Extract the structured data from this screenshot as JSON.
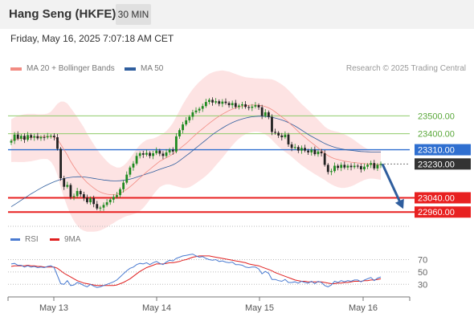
{
  "header": {
    "title": "Hang Seng (HKFE)",
    "timeframe": "30 MIN",
    "timestamp": "Friday, May 16, 2025 7:07:18 AM CET"
  },
  "legend": {
    "ma20": {
      "label": "MA 20 + Bollinger Bands",
      "color": "#f28b82"
    },
    "ma50": {
      "label": "MA 50",
      "color": "#2f5e9e"
    },
    "rsi": {
      "label": "RSI",
      "color": "#4a7bd1"
    },
    "rsi_ma": {
      "label": "9MA",
      "color": "#e02020"
    }
  },
  "copyright": "Research © 2025 Trading Central",
  "colors": {
    "up": "#1f8a1f",
    "down": "#222222",
    "band_fill": "#fde0e0",
    "resistance": "#8fcc6a",
    "pivot": "#2f6fd0",
    "support": "#e82020",
    "arrow": "#2f5e9e"
  },
  "chart_data": [
    {
      "type": "candlestick",
      "name": "price",
      "x_ticks": [
        "May 13",
        "May 14",
        "May 15",
        "May 16"
      ],
      "ylim": [
        22880,
        23700
      ],
      "levels": [
        {
          "value": 23500,
          "label": "23500.00",
          "kind": "resistance"
        },
        {
          "value": 23400,
          "label": "23400.00",
          "kind": "resistance"
        },
        {
          "value": 23310,
          "label": "23310.00",
          "kind": "pivot"
        },
        {
          "value": 23230,
          "label": "23230.00",
          "kind": "last"
        },
        {
          "value": 23040,
          "label": "23040.00",
          "kind": "support"
        },
        {
          "value": 22960,
          "label": "22960.00",
          "kind": "support"
        }
      ],
      "closes": [
        23360,
        23395,
        23372,
        23388,
        23366,
        23392,
        23378,
        23386,
        23374,
        23381,
        23379,
        23386,
        23388,
        23380,
        23315,
        23150,
        23102,
        23112,
        23045,
        23050,
        23078,
        23060,
        23040,
        23015,
        23038,
        23005,
        22980,
        22985,
        23000,
        23015,
        23030,
        23045,
        23055,
        23088,
        23125,
        23170,
        23210,
        23232,
        23275,
        23290,
        23282,
        23292,
        23275,
        23290,
        23305,
        23288,
        23275,
        23295,
        23310,
        23300,
        23385,
        23420,
        23452,
        23475,
        23495,
        23520,
        23530,
        23540,
        23555,
        23578,
        23590,
        23575,
        23582,
        23568,
        23580,
        23572,
        23560,
        23572,
        23550,
        23558,
        23565,
        23550,
        23545,
        23552,
        23560,
        23548,
        23500,
        23520,
        23495,
        23410,
        23405,
        23390,
        23380,
        23395,
        23340,
        23320,
        23325,
        23305,
        23320,
        23305,
        23295,
        23310,
        23285,
        23300,
        23290,
        23225,
        23185,
        23190,
        23220,
        23208,
        23225,
        23210,
        23220,
        23212,
        23220,
        23218,
        23200,
        23215,
        23225,
        23235,
        23205,
        23225,
        23230
      ],
      "ma20": [
        23361,
        23367,
        23371,
        23373,
        23375,
        23377,
        23378,
        23380,
        23381,
        23383,
        23384,
        23385,
        23383,
        23380,
        23368,
        23340,
        23310,
        23280,
        23245,
        23215,
        23188,
        23165,
        23145,
        23125,
        23110,
        23095,
        23082,
        23072,
        23065,
        23060,
        23058,
        23058,
        23060,
        23065,
        23075,
        23088,
        23102,
        23118,
        23135,
        23152,
        23168,
        23185,
        23200,
        23215,
        23230,
        23245,
        23255,
        23265,
        23275,
        23285,
        23300,
        23315,
        23330,
        23345,
        23362,
        23380,
        23397,
        23413,
        23428,
        23443,
        23458,
        23472,
        23486,
        23498,
        23510,
        23520,
        23530,
        23538,
        23545,
        23550,
        23554,
        23557,
        23560,
        23561,
        23561,
        23560,
        23557,
        23552,
        23545,
        23535,
        23522,
        23508,
        23494,
        23480,
        23465,
        23448,
        23430,
        23412,
        23395,
        23380,
        23365,
        23350,
        23335,
        23320,
        23305,
        23290,
        23277,
        23267,
        23260,
        23255,
        23250,
        23246,
        23243,
        23240,
        23238,
        23236,
        23234,
        23232,
        23230,
        23228,
        23227,
        23226,
        23226
      ],
      "ma50": [
        22990,
        23002,
        23014,
        23026,
        23038,
        23050,
        23062,
        23073,
        23084,
        23095,
        23105,
        23114,
        23122,
        23130,
        23137,
        23143,
        23148,
        23152,
        23155,
        23157,
        23158,
        23158,
        23157,
        23155,
        23152,
        23149,
        23146,
        23143,
        23140,
        23138,
        23136,
        23135,
        23135,
        23136,
        23138,
        23141,
        23145,
        23150,
        23156,
        23162,
        23168,
        23174,
        23180,
        23186,
        23193,
        23200,
        23206,
        23212,
        23218,
        23225,
        23235,
        23248,
        23262,
        23276,
        23290,
        23305,
        23320,
        23335,
        23350,
        23365,
        23380,
        23395,
        23408,
        23420,
        23432,
        23443,
        23453,
        23462,
        23470,
        23477,
        23483,
        23488,
        23492,
        23495,
        23497,
        23498,
        23498,
        23497,
        23495,
        23492,
        23488,
        23483,
        23477,
        23470,
        23462,
        23453,
        23443,
        23432,
        23420,
        23408,
        23396,
        23385,
        23375,
        23365,
        23355,
        23345,
        23337,
        23330,
        23324,
        23319,
        23315,
        23311,
        23308,
        23306,
        23304,
        23302,
        23300,
        23299,
        23298,
        23297,
        23297,
        23297,
        23297
      ],
      "band_width": [
        120,
        125,
        130,
        132,
        134,
        134,
        133,
        131,
        128,
        126,
        126,
        128,
        140,
        165,
        200,
        240,
        270,
        290,
        300,
        305,
        305,
        300,
        290,
        275,
        260,
        245,
        230,
        215,
        200,
        185,
        170,
        160,
        150,
        145,
        145,
        150,
        160,
        170,
        180,
        185,
        185,
        180,
        170,
        158,
        150,
        145,
        145,
        150,
        160,
        175,
        195,
        215,
        235,
        250,
        262,
        270,
        275,
        278,
        280,
        280,
        278,
        272,
        264,
        255,
        245,
        232,
        218,
        204,
        190,
        178,
        168,
        160,
        155,
        152,
        150,
        150,
        152,
        156,
        162,
        170,
        176,
        180,
        182,
        182,
        180,
        178,
        176,
        174,
        172,
        170,
        168,
        165,
        162,
        158,
        154,
        150,
        150,
        152,
        154,
        155,
        154,
        150,
        144,
        136,
        126,
        114,
        102,
        92,
        84,
        80,
        80,
        82,
        85
      ]
    },
    {
      "type": "line",
      "name": "rsi",
      "yticks": [
        "70",
        "50",
        "30"
      ],
      "ylim": [
        20,
        85
      ],
      "rsi": [
        63,
        64,
        61,
        61,
        58,
        60,
        58,
        59,
        57,
        58,
        57,
        59,
        60,
        57,
        44,
        31,
        30,
        36,
        28,
        29,
        33,
        31,
        28,
        26,
        30,
        27,
        25,
        26,
        28,
        30,
        32,
        34,
        37,
        42,
        47,
        52,
        56,
        58,
        62,
        64,
        63,
        65,
        62,
        65,
        67,
        64,
        62,
        66,
        69,
        68,
        72,
        74,
        76,
        77,
        78,
        79,
        76,
        74,
        75,
        72,
        70,
        69,
        70,
        67,
        68,
        66,
        65,
        66,
        62,
        62,
        61,
        58,
        57,
        58,
        58,
        55,
        47,
        51,
        48,
        38,
        38,
        36,
        35,
        38,
        33,
        33,
        34,
        32,
        35,
        33,
        32,
        35,
        31,
        35,
        33,
        28,
        26,
        29,
        35,
        33,
        36,
        34,
        36,
        35,
        37,
        37,
        34,
        37,
        39,
        41,
        36,
        40,
        42
      ],
      "rsi_ma": [
        59,
        60,
        60,
        60,
        60,
        61,
        60,
        60,
        59,
        59,
        58,
        58,
        58,
        58,
        56,
        52,
        48,
        45,
        42,
        39,
        36,
        34,
        32,
        31,
        30,
        29,
        28,
        28,
        28,
        28,
        28,
        28,
        29,
        31,
        33,
        36,
        39,
        43,
        47,
        51,
        54,
        57,
        59,
        61,
        63,
        63,
        63,
        64,
        65,
        65,
        66,
        67,
        69,
        70,
        72,
        74,
        75,
        76,
        76,
        76,
        76,
        75,
        74,
        73,
        72,
        71,
        70,
        69,
        68,
        67,
        66,
        65,
        63,
        62,
        61,
        60,
        58,
        56,
        54,
        52,
        49,
        47,
        45,
        43,
        41,
        39,
        37,
        36,
        35,
        35,
        34,
        34,
        34,
        34,
        34,
        33,
        32,
        31,
        31,
        32,
        32,
        33,
        33,
        34,
        35,
        35,
        35,
        36,
        36,
        37,
        37,
        38,
        39
      ]
    }
  ]
}
